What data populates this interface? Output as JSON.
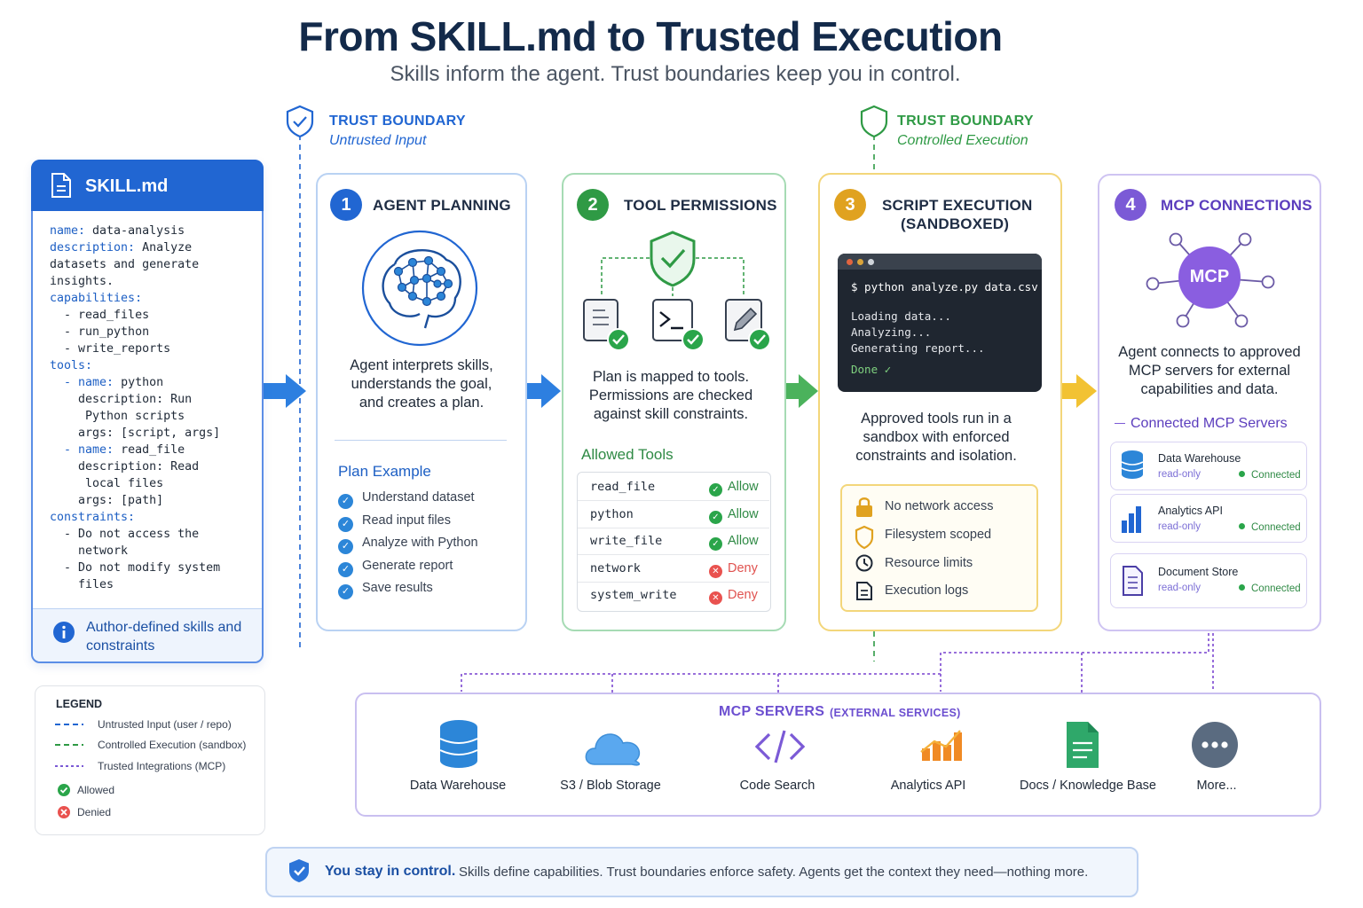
{
  "header": {
    "title": "From SKILL.md to Trusted Execution",
    "subtitle": "Skills inform the agent. Trust boundaries keep you in control."
  },
  "boundaries": [
    {
      "title": "TRUST BOUNDARY",
      "subtitle": "Untrusted Input",
      "color": "#2166d2"
    },
    {
      "title": "TRUST BOUNDARY",
      "subtitle": "Controlled Execution",
      "color": "#2f9a45"
    }
  ],
  "skill": {
    "title": "SKILL.md",
    "lines": [
      {
        "key": "name:",
        "val": " data-analysis"
      },
      {
        "key": "description:",
        "val": " Analyze"
      },
      {
        "key": "",
        "val": "datasets and generate"
      },
      {
        "key": "",
        "val": "insights."
      },
      {
        "key": "capabilities:",
        "val": ""
      },
      {
        "key": "",
        "val": "  - read_files"
      },
      {
        "key": "",
        "val": "  - run_python"
      },
      {
        "key": "",
        "val": "  - write_reports"
      },
      {
        "key": "tools:",
        "val": ""
      },
      {
        "key": "  - name:",
        "val": " python"
      },
      {
        "key": "",
        "val": "    description: Run"
      },
      {
        "key": "",
        "val": "     Python scripts"
      },
      {
        "key": "",
        "val": "    args: [script, args]"
      },
      {
        "key": "  - name:",
        "val": " read_file"
      },
      {
        "key": "",
        "val": "    description: Read"
      },
      {
        "key": "",
        "val": "     local files"
      },
      {
        "key": "",
        "val": "    args: [path]"
      },
      {
        "key": "constraints:",
        "val": ""
      },
      {
        "key": "",
        "val": "  - Do not access the"
      },
      {
        "key": "",
        "val": "    network"
      },
      {
        "key": "",
        "val": "  - Do not modify system"
      },
      {
        "key": "",
        "val": "    files"
      }
    ],
    "footer": "Author-defined skills and constraints"
  },
  "steps": [
    {
      "num": "1",
      "title": "AGENT PLANNING",
      "desc": "Agent interprets skills, understands the goal, and creates a plan.",
      "section_title": "Plan Example",
      "items": [
        "Understand dataset",
        "Read input files",
        "Analyze with Python",
        "Generate report",
        "Save results"
      ],
      "color": "#2166d2"
    },
    {
      "num": "2",
      "title": "TOOL PERMISSIONS",
      "desc": "Plan is mapped to tools. Permissions are checked against skill constraints.",
      "section_title": "Allowed Tools",
      "tools": [
        {
          "name": "read_file",
          "perm": "Allow",
          "ok": true
        },
        {
          "name": "python",
          "perm": "Allow",
          "ok": true
        },
        {
          "name": "write_file",
          "perm": "Allow",
          "ok": true
        },
        {
          "name": "network",
          "perm": "Deny",
          "ok": false
        },
        {
          "name": "system_write",
          "perm": "Deny",
          "ok": false
        }
      ],
      "color": "#2f9a45"
    },
    {
      "num": "3",
      "title_line1": "SCRIPT EXECUTION",
      "title_line2": "(SANDBOXED)",
      "terminal": {
        "command": "$ python analyze.py data.csv",
        "lines": [
          "Loading data...",
          "Analyzing...",
          "Generating report..."
        ],
        "done": "Done ✓"
      },
      "desc": "Approved tools run in a sandbox with enforced constraints and isolation.",
      "features": [
        "No network access",
        "Filesystem scoped",
        "Resource limits",
        "Execution logs"
      ],
      "color": "#e0a220"
    },
    {
      "num": "4",
      "title": "MCP CONNECTIONS",
      "hub_label": "MCP",
      "desc": "Agent connects to approved MCP servers for external capabilities and data.",
      "section_title": "Connected MCP Servers",
      "servers": [
        {
          "name": "Data Warehouse",
          "access": "read-only",
          "status": "Connected"
        },
        {
          "name": "Analytics API",
          "access": "read-only",
          "status": "Connected"
        },
        {
          "name": "Document Store",
          "access": "read-only",
          "status": "Connected"
        }
      ],
      "color": "#7b5ad6"
    }
  ],
  "external": {
    "title": "MCP SERVERS",
    "title_small": "(EXTERNAL SERVICES)",
    "services": [
      "Data Warehouse",
      "S3 / Blob Storage",
      "Code Search",
      "Analytics API",
      "Docs / Knowledge Base",
      "More..."
    ]
  },
  "legend": {
    "title": "LEGEND",
    "items": [
      "Untrusted Input (user / repo)",
      "Controlled Execution (sandbox)",
      "Trusted Integrations (MCP)",
      "Allowed",
      "Denied"
    ]
  },
  "footer": {
    "strong": "You stay in control.",
    "text": "Skills define capabilities. Trust boundaries enforce safety. Agents get the context they need—nothing more."
  }
}
